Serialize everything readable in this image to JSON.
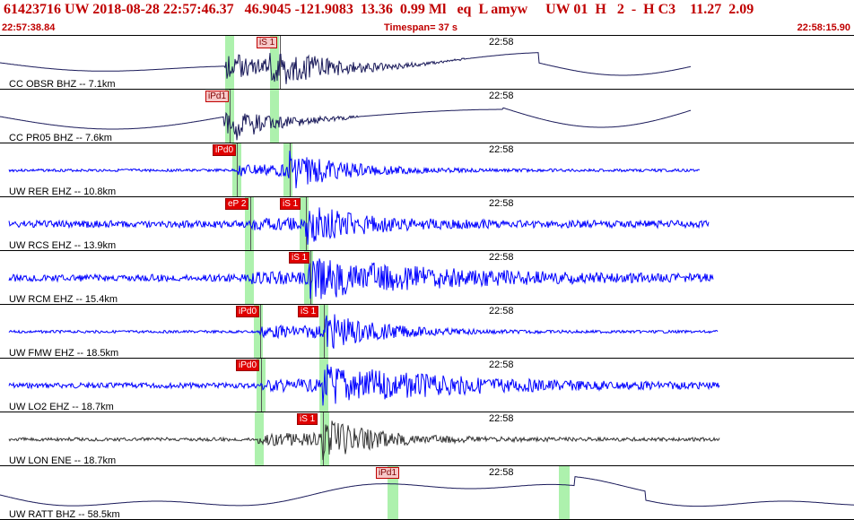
{
  "header": {
    "summary": "61423716 UW 2018-08-28 22:57:46.37   46.9045 -121.9083  13.36  0.99 Ml   eq  L amyw     UW 01  H   2  -  H C3    11.27  2.09",
    "start_time": "22:57:38.84",
    "timespan": "Timespan=  37 s",
    "end_time": "22:58:15.90"
  },
  "panels": [
    {
      "label": "CC OBSR BHZ -- 7.1km",
      "time": "22:58",
      "picks": [
        {
          "text": "iS 1",
          "style": "light"
        }
      ],
      "color": "#1a1a5a"
    },
    {
      "label": "CC PR05 BHZ -- 7.6km",
      "time": "22:58",
      "picks": [
        {
          "text": "iPd1",
          "style": "light"
        }
      ],
      "color": "#1a1a5a"
    },
    {
      "label": "UW RER EHZ -- 10.8km",
      "time": "22:58",
      "picks": [
        {
          "text": "iPd0",
          "style": "dark"
        }
      ],
      "color": "#0000ff"
    },
    {
      "label": "UW RCS EHZ -- 13.9km",
      "time": "22:58",
      "picks": [
        {
          "text": "eP 2",
          "style": "dark"
        },
        {
          "text": "iS 1",
          "style": "dark"
        }
      ],
      "color": "#0000ff"
    },
    {
      "label": "UW RCM EHZ -- 15.4km",
      "time": "22:58",
      "picks": [
        {
          "text": "iS 1",
          "style": "dark"
        }
      ],
      "color": "#0000ff"
    },
    {
      "label": "UW FMW EHZ -- 18.5km",
      "time": "22:58",
      "picks": [
        {
          "text": "iPd0",
          "style": "dark"
        },
        {
          "text": "iS 1",
          "style": "dark"
        }
      ],
      "color": "#0000ff"
    },
    {
      "label": "UW LO2 EHZ -- 18.7km",
      "time": "22:58",
      "picks": [
        {
          "text": "iPd0",
          "style": "dark"
        }
      ],
      "color": "#0000ff"
    },
    {
      "label": "UW LON ENE -- 18.7km",
      "time": "22:58",
      "picks": [
        {
          "text": "iS 1",
          "style": "dark"
        }
      ],
      "color": "#333333"
    },
    {
      "label": "UW RATT BHZ -- 58.5km",
      "time": "22:58",
      "picks": [
        {
          "text": "iPd1",
          "style": "light"
        }
      ],
      "color": "#1a1a5a"
    }
  ]
}
